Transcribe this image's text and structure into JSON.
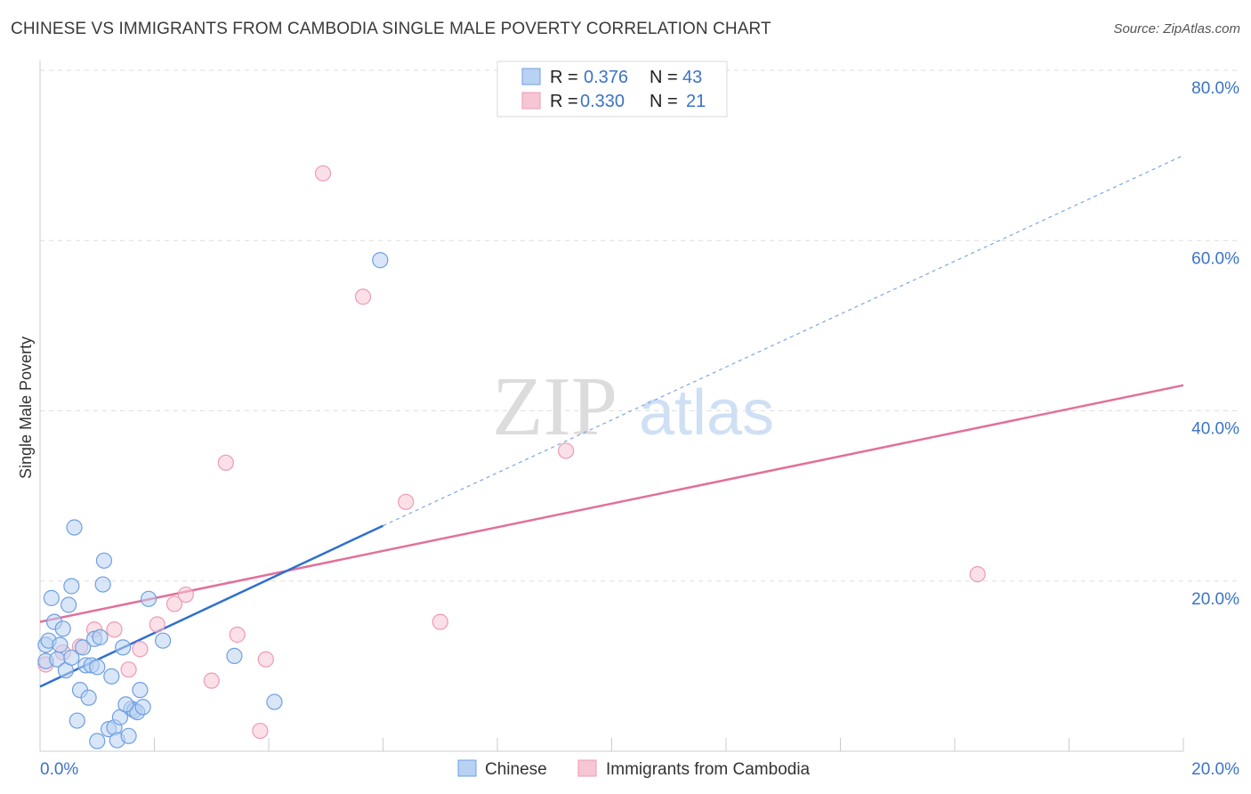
{
  "chart_data": {
    "type": "scatter",
    "title": "CHINESE VS IMMIGRANTS FROM CAMBODIA SINGLE MALE POVERTY CORRELATION CHART",
    "source": "Source: ZipAtlas.com",
    "xlabel": "",
    "ylabel": "Single Male Poverty",
    "xlim": [
      0,
      20
    ],
    "ylim": [
      0,
      80
    ],
    "x_tick_labels": [
      "0.0%",
      "20.0%"
    ],
    "y_ticks": [
      20,
      40,
      60,
      80
    ],
    "y_tick_labels": [
      "20.0%",
      "40.0%",
      "60.0%",
      "80.0%"
    ],
    "watermark": {
      "zip": "ZIP",
      "atlas": "atlas"
    },
    "legend": {
      "r_label": "R =",
      "n_label": "N =",
      "entries": [
        {
          "name": "Chinese",
          "r": "0.376",
          "n": "43"
        },
        {
          "name": "Immigrants from Cambodia",
          "r": "0.330",
          "n": "21"
        }
      ]
    },
    "series": [
      {
        "name": "Chinese",
        "color": "#6ea0e0",
        "fill": "#b9d1f2",
        "line_color": "#2f6fce",
        "trend": {
          "x0": 0.0,
          "y0": 7.6,
          "x1": 6.0,
          "y1": 26.5,
          "extend_x": 20.0,
          "extend_y": 70.0
        },
        "points": [
          [
            0.1,
            10.6
          ],
          [
            0.1,
            12.5
          ],
          [
            0.15,
            13.0
          ],
          [
            0.2,
            18.0
          ],
          [
            0.25,
            15.2
          ],
          [
            0.3,
            10.8
          ],
          [
            0.35,
            12.5
          ],
          [
            0.4,
            14.4
          ],
          [
            0.45,
            9.5
          ],
          [
            0.5,
            17.2
          ],
          [
            0.55,
            19.4
          ],
          [
            0.6,
            26.3
          ],
          [
            0.65,
            3.6
          ],
          [
            0.7,
            7.2
          ],
          [
            0.75,
            12.2
          ],
          [
            0.8,
            10.1
          ],
          [
            0.85,
            6.3
          ],
          [
            0.9,
            10.1
          ],
          [
            0.95,
            13.2
          ],
          [
            1.0,
            1.2
          ],
          [
            1.05,
            13.4
          ],
          [
            1.1,
            19.6
          ],
          [
            1.12,
            22.4
          ],
          [
            1.2,
            2.6
          ],
          [
            1.25,
            8.8
          ],
          [
            1.3,
            2.8
          ],
          [
            1.35,
            1.3
          ],
          [
            1.4,
            4.0
          ],
          [
            1.45,
            12.2
          ],
          [
            1.55,
            1.8
          ],
          [
            1.6,
            5.0
          ],
          [
            1.65,
            4.8
          ],
          [
            1.7,
            4.6
          ],
          [
            1.75,
            7.2
          ],
          [
            1.8,
            5.2
          ],
          [
            1.9,
            17.9
          ],
          [
            2.15,
            13.0
          ],
          [
            3.4,
            11.2
          ],
          [
            4.1,
            5.8
          ],
          [
            5.95,
            57.7
          ],
          [
            1.0,
            9.9
          ],
          [
            0.55,
            11.0
          ],
          [
            1.5,
            5.5
          ]
        ]
      },
      {
        "name": "Immigrants from Cambodia",
        "color": "#ee9ab5",
        "fill": "#f7c6d5",
        "line_color": "#e2709a",
        "trend": {
          "x0": 0.0,
          "y0": 15.2,
          "x1": 20.0,
          "y1": 43.0
        },
        "points": [
          [
            0.1,
            10.2
          ],
          [
            0.4,
            11.6
          ],
          [
            0.7,
            12.3
          ],
          [
            0.95,
            14.3
          ],
          [
            1.3,
            14.3
          ],
          [
            1.55,
            9.6
          ],
          [
            1.75,
            12.0
          ],
          [
            2.05,
            14.9
          ],
          [
            2.35,
            17.3
          ],
          [
            2.55,
            18.4
          ],
          [
            3.0,
            8.3
          ],
          [
            3.25,
            33.9
          ],
          [
            3.45,
            13.7
          ],
          [
            3.85,
            2.4
          ],
          [
            3.95,
            10.8
          ],
          [
            4.95,
            67.9
          ],
          [
            5.65,
            53.4
          ],
          [
            6.4,
            29.3
          ],
          [
            7.0,
            15.2
          ],
          [
            9.2,
            35.3
          ],
          [
            16.4,
            20.8
          ]
        ]
      }
    ]
  }
}
